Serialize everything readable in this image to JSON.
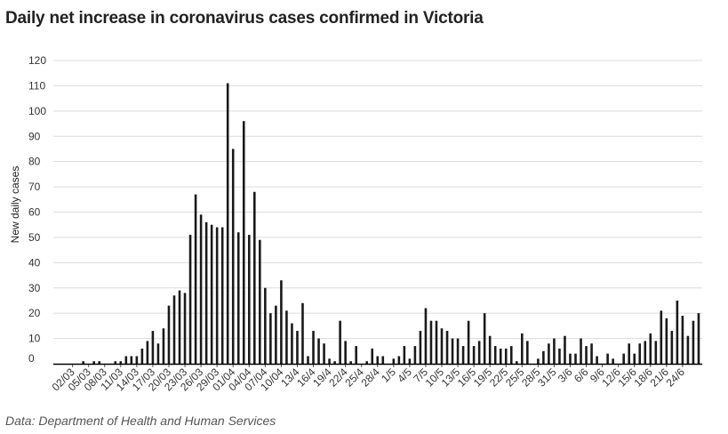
{
  "title": "Daily net increase in coronavirus cases confirmed in Victoria",
  "source": "Data: Department of Health and Human Services",
  "chart_data": {
    "type": "bar",
    "title": "Daily net increase in coronavirus cases confirmed in Victoria",
    "ylabel": "New daily cases",
    "xlabel": "",
    "ylim": [
      0,
      120
    ],
    "yticks": [
      0,
      10,
      20,
      30,
      40,
      50,
      60,
      70,
      80,
      90,
      100,
      110,
      120
    ],
    "grid": true,
    "bar_color": "#1a1a1a",
    "grid_color": "#dcdcdc",
    "series": [
      {
        "values": [
          0,
          0,
          0,
          1,
          0,
          1,
          1,
          0,
          0,
          1,
          1,
          3,
          3,
          3,
          6,
          9,
          13,
          8,
          14,
          23,
          27,
          29,
          28,
          51,
          67,
          59,
          56,
          55,
          54,
          54,
          111,
          85,
          52,
          96,
          51,
          68,
          49,
          30,
          20,
          23,
          33,
          21,
          16,
          13,
          24,
          3,
          13,
          10,
          8,
          2,
          1,
          17,
          9,
          1,
          7,
          0,
          1,
          6,
          3,
          3,
          0,
          2,
          3,
          7,
          2,
          7,
          13,
          22,
          17,
          17,
          14,
          13,
          10,
          10,
          7,
          17,
          7,
          9,
          20,
          11,
          7,
          6,
          6,
          7,
          1,
          12,
          9,
          0,
          2,
          5,
          8,
          10,
          6,
          11,
          4,
          4,
          10,
          7,
          8,
          3,
          0,
          4,
          2,
          0,
          4,
          8,
          4,
          8,
          9,
          12,
          9,
          21,
          18,
          13,
          25,
          19,
          11,
          17,
          20
        ]
      }
    ],
    "tick_labels": [
      {
        "index": 1,
        "label": "02/03"
      },
      {
        "index": 4,
        "label": "05/03"
      },
      {
        "index": 7,
        "label": "08/03"
      },
      {
        "index": 10,
        "label": "11/03"
      },
      {
        "index": 13,
        "label": "14/03"
      },
      {
        "index": 16,
        "label": "17/03"
      },
      {
        "index": 19,
        "label": "20/03"
      },
      {
        "index": 22,
        "label": "23/03"
      },
      {
        "index": 25,
        "label": "26/03"
      },
      {
        "index": 28,
        "label": "29/03"
      },
      {
        "index": 31,
        "label": "01/04"
      },
      {
        "index": 34,
        "label": "04/04"
      },
      {
        "index": 37,
        "label": "07/04"
      },
      {
        "index": 40,
        "label": "10/04"
      },
      {
        "index": 43,
        "label": "13/4"
      },
      {
        "index": 46,
        "label": "16/4"
      },
      {
        "index": 49,
        "label": "19/4"
      },
      {
        "index": 52,
        "label": "22/4"
      },
      {
        "index": 55,
        "label": "25/4"
      },
      {
        "index": 58,
        "label": "28/4"
      },
      {
        "index": 61,
        "label": "1/5"
      },
      {
        "index": 64,
        "label": "4/5"
      },
      {
        "index": 67,
        "label": "7/5"
      },
      {
        "index": 70,
        "label": "10/5"
      },
      {
        "index": 73,
        "label": "13/5"
      },
      {
        "index": 76,
        "label": "16/5"
      },
      {
        "index": 79,
        "label": "19/5"
      },
      {
        "index": 82,
        "label": "22/5"
      },
      {
        "index": 85,
        "label": "25/5"
      },
      {
        "index": 88,
        "label": "28/5"
      },
      {
        "index": 91,
        "label": "31/5"
      },
      {
        "index": 94,
        "label": "3/6"
      },
      {
        "index": 97,
        "label": "6/6"
      },
      {
        "index": 100,
        "label": "9/6"
      },
      {
        "index": 103,
        "label": "12/6"
      },
      {
        "index": 106,
        "label": "15/6"
      },
      {
        "index": 109,
        "label": "18/6"
      },
      {
        "index": 112,
        "label": "21/6"
      },
      {
        "index": 115,
        "label": "24/6"
      }
    ]
  }
}
